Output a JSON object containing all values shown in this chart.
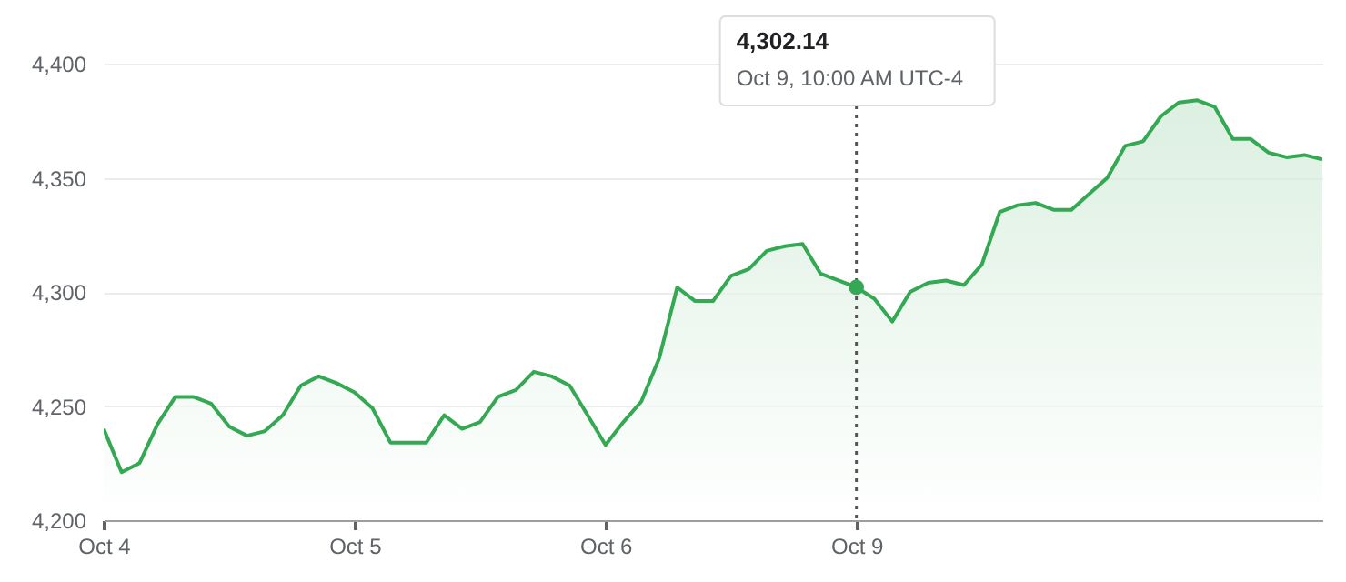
{
  "chart_data": {
    "type": "area",
    "categories": [
      "Oct 4",
      null,
      null,
      null,
      null,
      null,
      null,
      null,
      null,
      null,
      null,
      null,
      null,
      null,
      "Oct 5",
      null,
      null,
      null,
      null,
      null,
      null,
      null,
      null,
      null,
      null,
      null,
      null,
      null,
      "Oct 6",
      null,
      null,
      null,
      null,
      null,
      null,
      null,
      null,
      null,
      null,
      null,
      null,
      null,
      "Oct 9",
      null,
      null,
      null,
      null,
      null,
      null,
      null,
      null,
      null,
      null,
      null,
      null,
      null,
      null,
      null,
      null,
      null,
      null,
      null,
      null,
      null,
      null,
      null,
      null,
      null,
      null
    ],
    "series": [
      {
        "color": "#34a853",
        "values": [
          4240,
          4221,
          4225,
          4242,
          4254,
          4254,
          4251,
          4241,
          4237,
          4239,
          4246,
          4259,
          4263,
          4260,
          4256,
          4249,
          4234,
          4234,
          4234,
          4246,
          4240,
          4243,
          4254,
          4257,
          4265,
          4263,
          4259,
          4246,
          4233,
          4243,
          4252,
          4271,
          4302,
          4296,
          4296,
          4307,
          4310,
          4318,
          4320,
          4321,
          4308,
          4305,
          4302,
          4297,
          4287,
          4300,
          4304,
          4305,
          4303,
          4312,
          4335,
          4338,
          4339,
          4336,
          4336,
          4343,
          4350,
          4364,
          4366,
          4377,
          4383,
          4384,
          4381,
          4367,
          4367,
          4361,
          4359,
          4360,
          4358
        ]
      }
    ],
    "ylim": [
      4200,
      4400
    ],
    "yticks": [
      {
        "value": 4200,
        "label": "4,200"
      },
      {
        "value": 4250,
        "label": "4,250"
      },
      {
        "value": 4300,
        "label": "4,300"
      },
      {
        "value": 4350,
        "label": "4,350"
      },
      {
        "value": 4400,
        "label": "4,400"
      }
    ],
    "grid": "y",
    "marker": "none",
    "annotations": [
      "4,302.14",
      "Oct 9, 10:00 AM UTC-4"
    ],
    "ref_lines": [
      {
        "axis": "x",
        "value": "Oct 9",
        "color": "#555555",
        "line_style": "dotted"
      }
    ]
  }
}
